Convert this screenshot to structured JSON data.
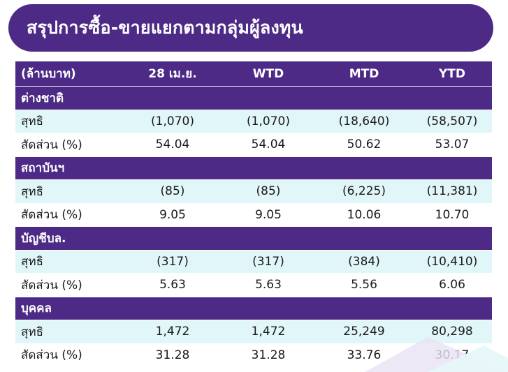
{
  "title": "สรุปการซื้อ-ขายแยกตามกลุ่มผู้ลงทุน",
  "header": {
    "unit_label": "(ล้านบาท)",
    "columns": [
      "28 เม.ย.",
      "WTD",
      "MTD",
      "YTD"
    ]
  },
  "sections": [
    {
      "name": "ต่างชาติ",
      "net": {
        "label": "สุทธิ",
        "values": [
          "(1,070)",
          "(1,070)",
          "(18,640)",
          "(58,507)"
        ]
      },
      "share": {
        "label": "สัดส่วน (%)",
        "values": [
          "54.04",
          "54.04",
          "50.62",
          "53.07"
        ]
      }
    },
    {
      "name": "สถาบันฯ",
      "net": {
        "label": "สุทธิ",
        "values": [
          "(85)",
          "(85)",
          "(6,225)",
          "(11,381)"
        ]
      },
      "share": {
        "label": "สัดส่วน (%)",
        "values": [
          "9.05",
          "9.05",
          "10.06",
          "10.70"
        ]
      }
    },
    {
      "name": "บัญชีบล.",
      "net": {
        "label": "สุทธิ",
        "values": [
          "(317)",
          "(317)",
          "(384)",
          "(10,410)"
        ]
      },
      "share": {
        "label": "สัดส่วน (%)",
        "values": [
          "5.63",
          "5.63",
          "5.56",
          "6.06"
        ]
      }
    },
    {
      "name": "บุคคล",
      "net": {
        "label": "สุทธิ",
        "values": [
          "1,472",
          "1,472",
          "25,249",
          "80,298"
        ]
      },
      "share": {
        "label": "สัดส่วน (%)",
        "values": [
          "31.28",
          "31.28",
          "33.76",
          "30.17"
        ]
      }
    }
  ],
  "colors": {
    "accent": "#4d2a85",
    "net_row": "#e1f6f8",
    "deco_purple": "#e9e2f3",
    "deco_cyan": "#e6f7f9"
  }
}
